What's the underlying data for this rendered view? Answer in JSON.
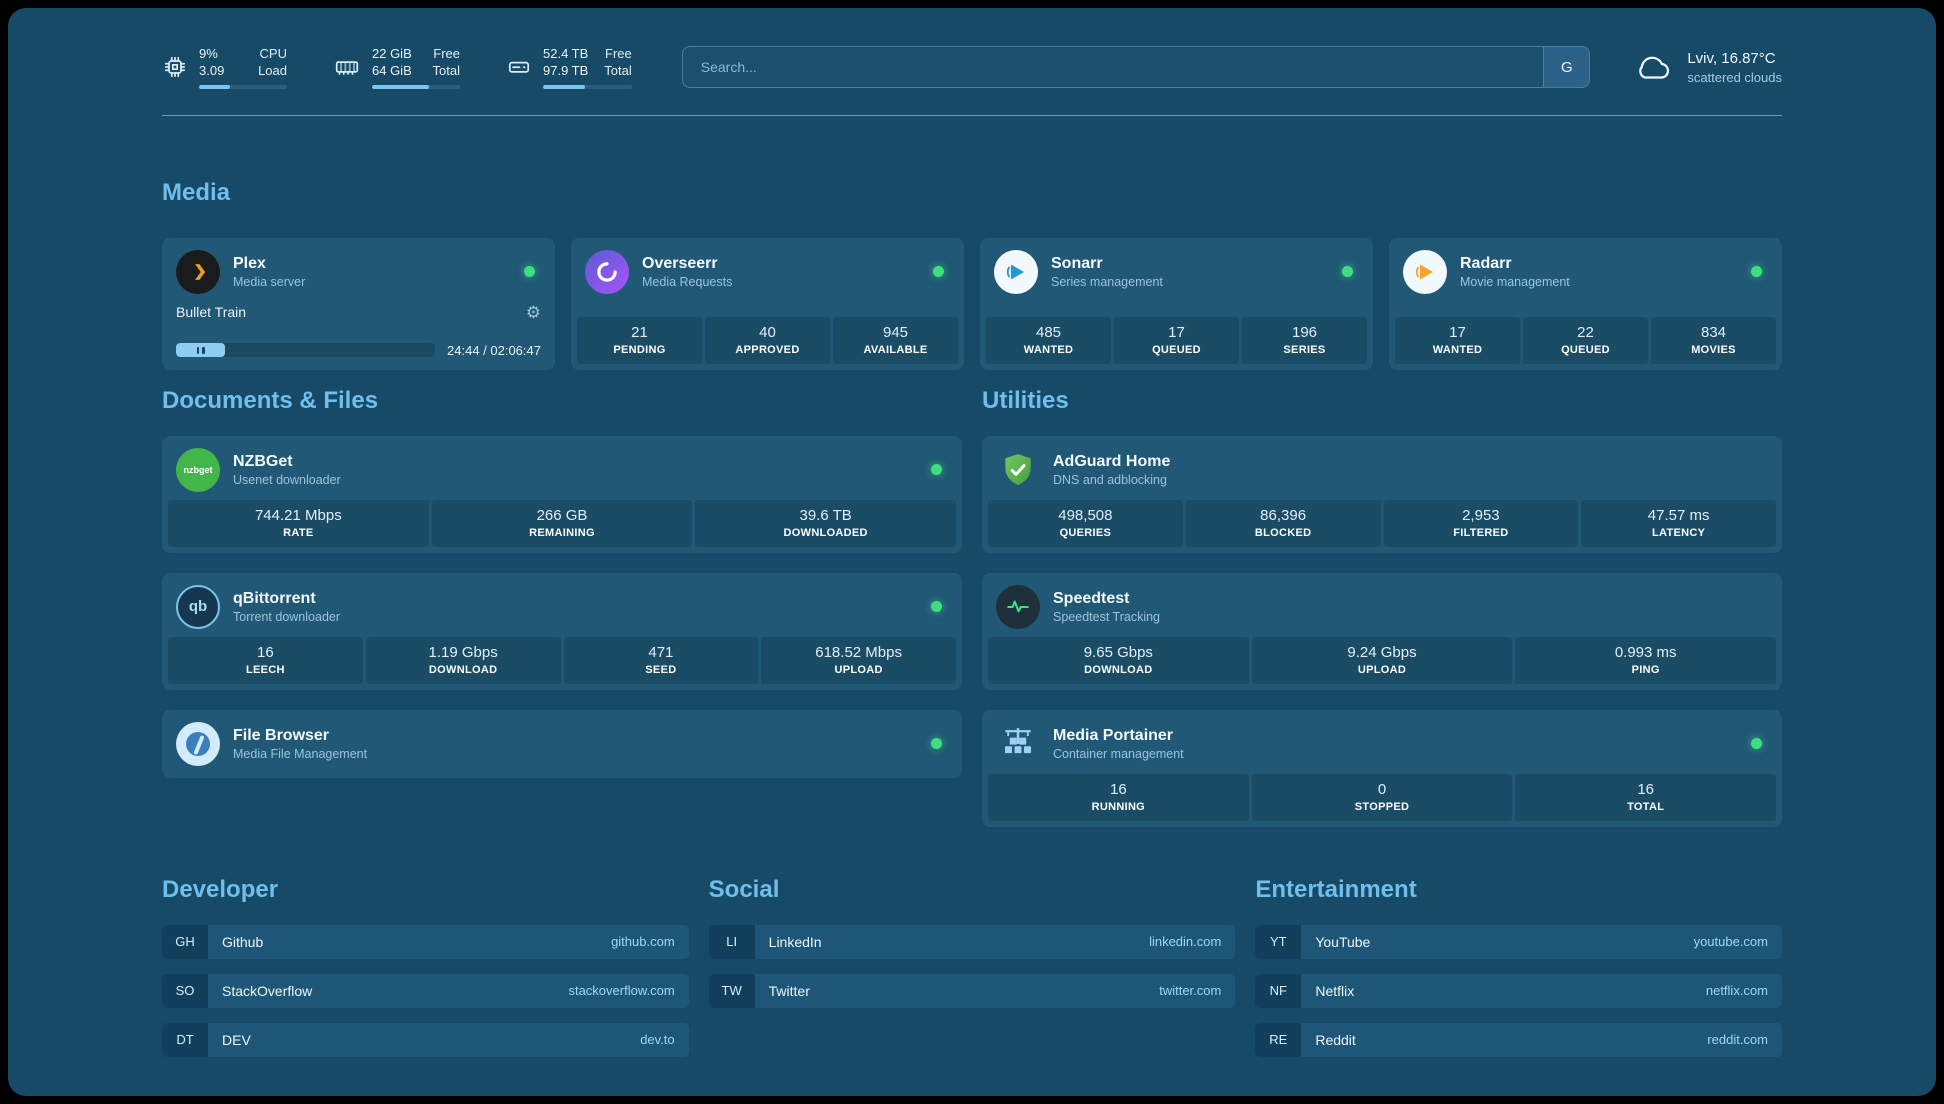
{
  "colors": {
    "background": "#174a66",
    "card": "#205875",
    "accent_heading": "#6fbeec",
    "status_green": "#3fde81",
    "progress_fill": "#7fc4ea"
  },
  "topbar": {
    "stats": [
      {
        "icon": "cpu-icon",
        "value1": "9%",
        "label1": "CPU",
        "value2": "3.09",
        "label2": "Load",
        "progress_pct": 35
      },
      {
        "icon": "memory-icon",
        "value1": "22 GiB",
        "label1": "Free",
        "value2": "64 GiB",
        "label2": "Total",
        "progress_pct": 65
      },
      {
        "icon": "disk-icon",
        "value1": "52.4 TB",
        "label1": "Free",
        "value2": "97.9 TB",
        "label2": "Total",
        "progress_pct": 47
      }
    ],
    "search": {
      "placeholder": "Search...",
      "provider": "G"
    },
    "weather": {
      "icon": "cloud-icon",
      "location": "Lviv, 16.87°C",
      "condition": "scattered clouds"
    }
  },
  "sections": {
    "media": "Media",
    "documents": "Documents & Files",
    "utilities": "Utilities",
    "developer": "Developer",
    "social": "Social",
    "entertainment": "Entertainment"
  },
  "apps": {
    "plex": {
      "name": "Plex",
      "desc": "Media server",
      "now_playing": "Bullet Train",
      "time": "24:44 / 02:06:47",
      "progress_pct": 19
    },
    "overseerr": {
      "name": "Overseerr",
      "desc": "Media Requests",
      "stats": [
        {
          "value": "21",
          "label": "PENDING"
        },
        {
          "value": "40",
          "label": "APPROVED"
        },
        {
          "value": "945",
          "label": "AVAILABLE"
        }
      ]
    },
    "sonarr": {
      "name": "Sonarr",
      "desc": "Series management",
      "stats": [
        {
          "value": "485",
          "label": "WANTED"
        },
        {
          "value": "17",
          "label": "QUEUED"
        },
        {
          "value": "196",
          "label": "SERIES"
        }
      ]
    },
    "radarr": {
      "name": "Radarr",
      "desc": "Movie management",
      "stats": [
        {
          "value": "17",
          "label": "WANTED"
        },
        {
          "value": "22",
          "label": "QUEUED"
        },
        {
          "value": "834",
          "label": "MOVIES"
        }
      ]
    },
    "nzbget": {
      "name": "NZBGet",
      "desc": "Usenet downloader",
      "icon_text": "nzbget",
      "stats": [
        {
          "value": "744.21 Mbps",
          "label": "RATE"
        },
        {
          "value": "266 GB",
          "label": "REMAINING"
        },
        {
          "value": "39.6 TB",
          "label": "DOWNLOADED"
        }
      ]
    },
    "qbittorrent": {
      "name": "qBittorrent",
      "desc": "Torrent downloader",
      "icon_text": "qb",
      "stats": [
        {
          "value": "16",
          "label": "LEECH"
        },
        {
          "value": "1.19 Gbps",
          "label": "DOWNLOAD"
        },
        {
          "value": "471",
          "label": "SEED"
        },
        {
          "value": "618.52 Mbps",
          "label": "UPLOAD"
        }
      ]
    },
    "filebrowser": {
      "name": "File Browser",
      "desc": "Media File Management"
    },
    "adguard": {
      "name": "AdGuard Home",
      "desc": "DNS and adblocking",
      "stats": [
        {
          "value": "498,508",
          "label": "QUERIES"
        },
        {
          "value": "86,396",
          "label": "BLOCKED"
        },
        {
          "value": "2,953",
          "label": "FILTERED"
        },
        {
          "value": "47.57 ms",
          "label": "LATENCY"
        }
      ]
    },
    "speedtest": {
      "name": "Speedtest",
      "desc": "Speedtest Tracking",
      "stats": [
        {
          "value": "9.65 Gbps",
          "label": "DOWNLOAD"
        },
        {
          "value": "9.24 Gbps",
          "label": "UPLOAD"
        },
        {
          "value": "0.993 ms",
          "label": "PING"
        }
      ]
    },
    "portainer": {
      "name": "Media Portainer",
      "desc": "Container management",
      "stats": [
        {
          "value": "16",
          "label": "RUNNING"
        },
        {
          "value": "0",
          "label": "STOPPED"
        },
        {
          "value": "16",
          "label": "TOTAL"
        }
      ]
    }
  },
  "bookmarks": {
    "developer": [
      {
        "abbr": "GH",
        "name": "Github",
        "url": "github.com"
      },
      {
        "abbr": "SO",
        "name": "StackOverflow",
        "url": "stackoverflow.com"
      },
      {
        "abbr": "DT",
        "name": "DEV",
        "url": "dev.to"
      }
    ],
    "social": [
      {
        "abbr": "LI",
        "name": "LinkedIn",
        "url": "linkedin.com"
      },
      {
        "abbr": "TW",
        "name": "Twitter",
        "url": "twitter.com"
      }
    ],
    "entertainment": [
      {
        "abbr": "YT",
        "name": "YouTube",
        "url": "youtube.com"
      },
      {
        "abbr": "NF",
        "name": "Netflix",
        "url": "netflix.com"
      },
      {
        "abbr": "RE",
        "name": "Reddit",
        "url": "reddit.com"
      }
    ]
  }
}
